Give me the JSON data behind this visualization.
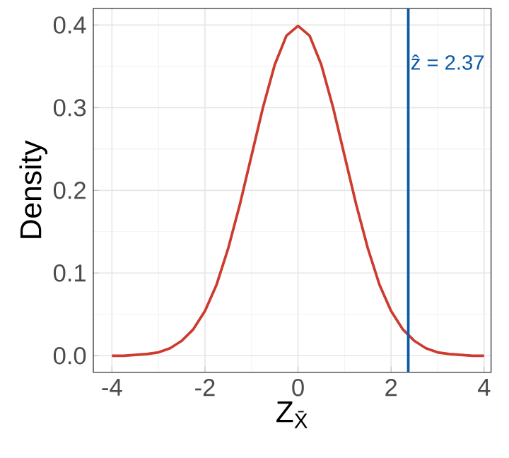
{
  "chart_data": {
    "type": "line",
    "xlabel": "Z$_{X̄}$",
    "ylabel": "Density",
    "x": [
      -4,
      -3.75,
      -3.5,
      -3.25,
      -3,
      -2.75,
      -2.5,
      -2.25,
      -2,
      -1.75,
      -1.5,
      -1.25,
      -1,
      -0.75,
      -0.5,
      -0.25,
      0,
      0.25,
      0.5,
      0.75,
      1,
      1.25,
      1.5,
      1.75,
      2,
      2.25,
      2.5,
      2.75,
      3,
      3.25,
      3.5,
      3.75,
      4
    ],
    "series": [
      {
        "color": "#cc3b2e",
        "values": [
          0.0,
          0.0,
          0.001,
          0.002,
          0.004,
          0.009,
          0.018,
          0.032,
          0.054,
          0.086,
          0.13,
          0.183,
          0.242,
          0.301,
          0.352,
          0.387,
          0.399,
          0.387,
          0.352,
          0.301,
          0.242,
          0.183,
          0.13,
          0.086,
          0.054,
          0.032,
          0.018,
          0.009,
          0.004,
          0.002,
          0.001,
          0.0,
          0.0
        ]
      }
    ],
    "xlim": [
      -4.4,
      4.15
    ],
    "ylim": [
      -0.02,
      0.42
    ],
    "xticks": [
      -4,
      -2,
      0,
      2,
      4
    ],
    "yticks": [
      {
        "value": 0,
        "label": "0.0"
      },
      0.1,
      0.2,
      0.3,
      0.4
    ],
    "ref_lines": [
      {
        "axis": "x",
        "value": 2.37,
        "label": "ẑ = 2.37",
        "color": "#0b5aa6"
      }
    ],
    "grid": true,
    "marker": "none",
    "line_style": "solid"
  }
}
